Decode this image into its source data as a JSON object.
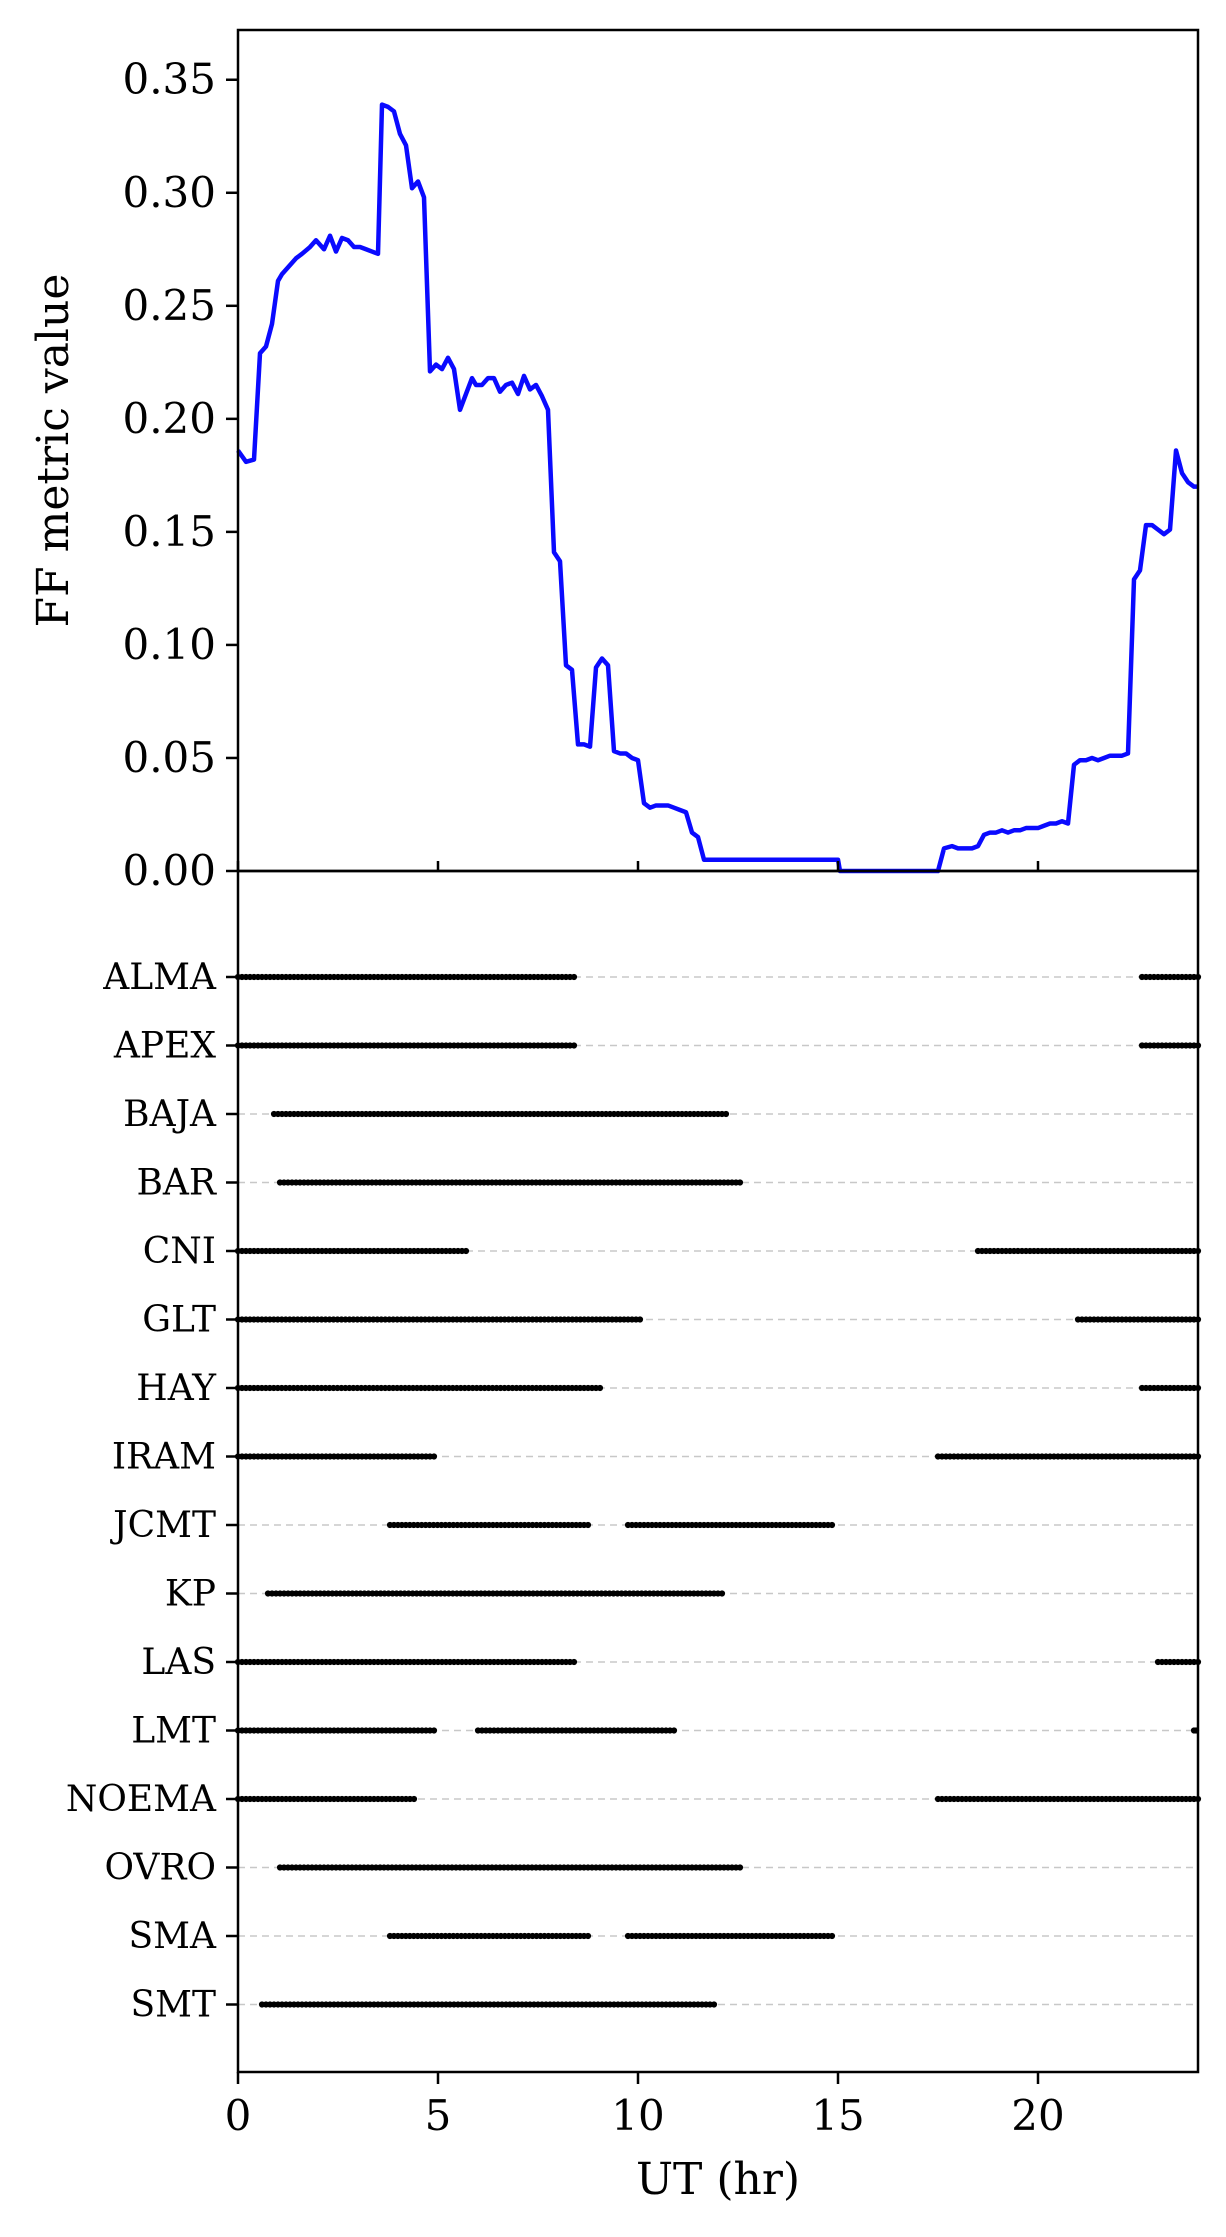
{
  "chart_data": [
    {
      "type": "line",
      "ylabel": "FF metric value",
      "xlabel": "",
      "xlim": [
        0,
        24
      ],
      "ylim": [
        0,
        0.372
      ],
      "yticks": [
        "0.00",
        "0.05",
        "0.10",
        "0.15",
        "0.20",
        "0.25",
        "0.30",
        "0.35"
      ],
      "grid": false,
      "color": "#0a0aff",
      "series": [
        {
          "x": [
            0,
            0.2,
            0.4,
            0.55,
            0.7,
            0.85,
            1.0,
            1.1,
            1.3,
            1.45,
            1.6,
            1.8,
            1.95,
            2.15,
            2.3,
            2.45,
            2.6,
            2.75,
            2.9,
            3.05,
            3.2,
            3.35,
            3.5,
            3.6,
            3.75,
            3.9,
            4.05,
            4.2,
            4.35,
            4.5,
            4.65,
            4.8,
            4.95,
            5.1,
            5.25,
            5.4,
            5.55,
            5.7,
            5.85,
            5.95,
            6.1,
            6.25,
            6.4,
            6.55,
            6.7,
            6.85,
            7.0,
            7.15,
            7.3,
            7.45,
            7.6,
            7.75,
            7.9,
            8.05,
            8.2,
            8.35,
            8.5,
            8.65,
            8.8,
            8.95,
            9.1,
            9.25,
            9.4,
            9.55,
            9.7,
            9.85,
            10.0,
            10.15,
            10.3,
            10.45,
            10.6,
            10.75,
            10.9,
            11.05,
            11.2,
            11.35,
            11.5,
            11.65,
            11.8,
            11.95,
            12.15,
            12.35,
            12.5,
            12.7,
            15.0,
            15.05,
            17.35,
            17.5,
            17.65,
            17.85,
            18.0,
            18.2,
            18.35,
            18.5,
            18.65,
            18.8,
            18.95,
            19.1,
            19.25,
            19.4,
            19.55,
            19.7,
            19.85,
            20.0,
            20.15,
            20.3,
            20.45,
            20.6,
            20.75,
            20.9,
            21.05,
            21.2,
            21.35,
            21.5,
            21.65,
            21.8,
            21.95,
            22.1,
            22.25,
            22.4,
            22.55,
            22.7,
            22.85,
            23.0,
            23.15,
            23.3,
            23.45,
            23.6,
            23.75,
            23.9,
            24.0
          ],
          "y": [
            0.186,
            0.181,
            0.182,
            0.229,
            0.232,
            0.242,
            0.261,
            0.264,
            0.268,
            0.271,
            0.273,
            0.276,
            0.279,
            0.275,
            0.281,
            0.274,
            0.28,
            0.279,
            0.276,
            0.276,
            0.275,
            0.274,
            0.273,
            0.339,
            0.338,
            0.336,
            0.326,
            0.321,
            0.302,
            0.305,
            0.298,
            0.221,
            0.224,
            0.222,
            0.227,
            0.222,
            0.204,
            0.211,
            0.218,
            0.215,
            0.215,
            0.218,
            0.218,
            0.212,
            0.215,
            0.216,
            0.211,
            0.219,
            0.213,
            0.215,
            0.21,
            0.204,
            0.141,
            0.137,
            0.091,
            0.089,
            0.056,
            0.056,
            0.055,
            0.09,
            0.094,
            0.091,
            0.053,
            0.052,
            0.052,
            0.05,
            0.049,
            0.03,
            0.028,
            0.029,
            0.029,
            0.029,
            0.028,
            0.027,
            0.026,
            0.017,
            0.015,
            0.005,
            0.005,
            0.005,
            0.005,
            0.005,
            0.005,
            0.005,
            0.005,
            0.0,
            0.0,
            0.0,
            0.01,
            0.011,
            0.01,
            0.01,
            0.01,
            0.011,
            0.016,
            0.017,
            0.017,
            0.018,
            0.017,
            0.018,
            0.018,
            0.019,
            0.019,
            0.019,
            0.02,
            0.021,
            0.021,
            0.022,
            0.021,
            0.047,
            0.049,
            0.049,
            0.05,
            0.049,
            0.05,
            0.051,
            0.051,
            0.051,
            0.052,
            0.129,
            0.133,
            0.153,
            0.153,
            0.151,
            0.149,
            0.151,
            0.186,
            0.176,
            0.172,
            0.17,
            0.17
          ]
        }
      ]
    },
    {
      "type": "scatter",
      "xlabel": "UT (hr)",
      "ylabel": "",
      "xlim": [
        0,
        24
      ],
      "xticks": [
        0,
        5,
        10,
        15,
        20
      ],
      "grid": true,
      "categories": [
        "ALMA",
        "APEX",
        "BAJA",
        "BAR",
        "CNI",
        "GLT",
        "HAY",
        "IRAM",
        "JCMT",
        "KP",
        "LAS",
        "LMT",
        "NOEMA",
        "OVRO",
        "SMA",
        "SMT"
      ],
      "intervals": [
        [
          [
            0,
            8.4
          ],
          [
            22.6,
            24
          ]
        ],
        [
          [
            0,
            8.4
          ],
          [
            22.6,
            24
          ]
        ],
        [
          [
            0.9,
            12.2
          ]
        ],
        [
          [
            1.05,
            12.55
          ]
        ],
        [
          [
            0,
            5.7
          ],
          [
            18.5,
            24
          ]
        ],
        [
          [
            0,
            10.05
          ],
          [
            21.0,
            24
          ]
        ],
        [
          [
            0,
            9.05
          ],
          [
            22.6,
            24
          ]
        ],
        [
          [
            0,
            4.9
          ],
          [
            17.5,
            24
          ]
        ],
        [
          [
            3.8,
            8.75
          ],
          [
            9.75,
            14.85
          ]
        ],
        [
          [
            0.75,
            12.1
          ]
        ],
        [
          [
            0,
            8.4
          ],
          [
            23.0,
            24
          ]
        ],
        [
          [
            0,
            4.9
          ],
          [
            6.0,
            10.9
          ],
          [
            23.9,
            23.95
          ]
        ],
        [
          [
            0,
            4.4
          ],
          [
            17.5,
            24
          ]
        ],
        [
          [
            1.05,
            12.55
          ]
        ],
        [
          [
            3.8,
            8.75
          ],
          [
            9.75,
            14.85
          ]
        ],
        [
          [
            0.6,
            11.9
          ]
        ]
      ],
      "cadence_hr": 0.1
    }
  ]
}
